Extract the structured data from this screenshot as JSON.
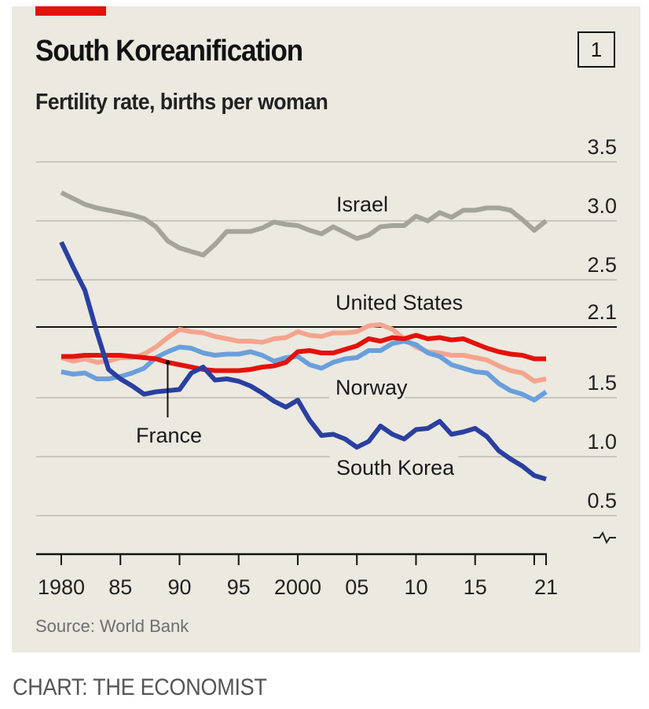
{
  "header": {
    "title": "South Koreanification",
    "chart_number": "1",
    "subtitle": "Fertility rate, births per woman"
  },
  "footer": {
    "source": "Source: World Bank",
    "credit": "CHART: THE ECONOMIST"
  },
  "colors": {
    "accent": "#e3120b",
    "background": "#ebe9e0",
    "Israel": "#a4a49a",
    "United States": "#f5a48e",
    "France": "#e3120b",
    "Norway": "#6a9fdc",
    "South Korea": "#2a3fa0",
    "gridline": "#c8c6bc",
    "replacement_line": "#121212"
  },
  "chart_data": {
    "type": "line",
    "title": "South Koreanification",
    "subtitle": "Fertility rate, births per woman",
    "xlabel": "",
    "ylabel": "",
    "xlim": [
      1980,
      2021
    ],
    "ylim": [
      0.5,
      3.5
    ],
    "y_axis_break": true,
    "grid": true,
    "legend": "inline labels",
    "x_ticks": [
      {
        "value": 1980,
        "label": "1980"
      },
      {
        "value": 1985,
        "label": "85"
      },
      {
        "value": 1990,
        "label": "90"
      },
      {
        "value": 1995,
        "label": "95"
      },
      {
        "value": 2000,
        "label": "2000"
      },
      {
        "value": 2005,
        "label": "05"
      },
      {
        "value": 2010,
        "label": "10"
      },
      {
        "value": 2015,
        "label": "15"
      },
      {
        "value": 2020,
        "label": ""
      },
      {
        "value": 2021,
        "label": "21"
      }
    ],
    "y_ticks": [
      {
        "value": 3.5,
        "label": "3.5"
      },
      {
        "value": 3.0,
        "label": "3.0"
      },
      {
        "value": 2.5,
        "label": "2.5"
      },
      {
        "value": 2.1,
        "label": "2.1",
        "highlight": true
      },
      {
        "value": 1.5,
        "label": "1.5"
      },
      {
        "value": 1.0,
        "label": "1.0"
      },
      {
        "value": 0.5,
        "label": "0.5"
      }
    ],
    "reference_line": {
      "value": 2.1,
      "meaning": "replacement rate"
    },
    "x": [
      1980,
      1981,
      1982,
      1983,
      1984,
      1985,
      1986,
      1987,
      1988,
      1989,
      1990,
      1991,
      1992,
      1993,
      1994,
      1995,
      1996,
      1997,
      1998,
      1999,
      2000,
      2001,
      2002,
      2003,
      2004,
      2005,
      2006,
      2007,
      2008,
      2009,
      2010,
      2011,
      2012,
      2013,
      2014,
      2015,
      2016,
      2017,
      2018,
      2019,
      2020,
      2021
    ],
    "series": [
      {
        "name": "Israel",
        "label": "Israel",
        "values": [
          3.24,
          3.19,
          3.14,
          3.11,
          3.09,
          3.07,
          3.05,
          3.02,
          2.95,
          2.83,
          2.77,
          2.74,
          2.71,
          2.8,
          2.91,
          2.91,
          2.91,
          2.94,
          2.99,
          2.97,
          2.96,
          2.92,
          2.89,
          2.95,
          2.9,
          2.85,
          2.88,
          2.95,
          2.96,
          2.96,
          3.04,
          3.0,
          3.07,
          3.03,
          3.09,
          3.09,
          3.11,
          3.11,
          3.09,
          3.01,
          2.92,
          3.0
        ]
      },
      {
        "name": "United States",
        "label": "United States",
        "values": [
          1.84,
          1.81,
          1.83,
          1.8,
          1.81,
          1.84,
          1.84,
          1.87,
          1.93,
          2.01,
          2.08,
          2.06,
          2.05,
          2.02,
          2.0,
          1.98,
          1.98,
          1.97,
          2.0,
          2.01,
          2.06,
          2.03,
          2.02,
          2.05,
          2.05,
          2.06,
          2.11,
          2.12,
          2.08,
          2.0,
          1.93,
          1.89,
          1.88,
          1.86,
          1.86,
          1.84,
          1.82,
          1.77,
          1.73,
          1.71,
          1.64,
          1.66
        ]
      },
      {
        "name": "France",
        "label": "France",
        "values": [
          1.85,
          1.85,
          1.86,
          1.86,
          1.86,
          1.86,
          1.85,
          1.84,
          1.83,
          1.8,
          1.78,
          1.76,
          1.74,
          1.73,
          1.73,
          1.73,
          1.74,
          1.76,
          1.77,
          1.8,
          1.89,
          1.9,
          1.88,
          1.88,
          1.91,
          1.94,
          2.0,
          1.98,
          2.01,
          2.0,
          2.03,
          2.0,
          2.01,
          1.99,
          2.0,
          1.96,
          1.92,
          1.89,
          1.87,
          1.86,
          1.83,
          1.83
        ]
      },
      {
        "name": "Norway",
        "label": "Norway",
        "values": [
          1.72,
          1.7,
          1.71,
          1.66,
          1.66,
          1.68,
          1.71,
          1.75,
          1.84,
          1.89,
          1.93,
          1.92,
          1.88,
          1.86,
          1.87,
          1.87,
          1.89,
          1.86,
          1.81,
          1.84,
          1.85,
          1.78,
          1.75,
          1.8,
          1.83,
          1.84,
          1.9,
          1.9,
          1.96,
          1.98,
          1.95,
          1.88,
          1.85,
          1.78,
          1.75,
          1.72,
          1.71,
          1.62,
          1.56,
          1.53,
          1.48,
          1.55
        ]
      },
      {
        "name": "South Korea",
        "label": "South Korea",
        "values": [
          2.82,
          2.61,
          2.41,
          2.06,
          1.74,
          1.66,
          1.6,
          1.53,
          1.55,
          1.56,
          1.57,
          1.71,
          1.76,
          1.65,
          1.66,
          1.64,
          1.6,
          1.54,
          1.47,
          1.42,
          1.48,
          1.31,
          1.18,
          1.19,
          1.15,
          1.08,
          1.13,
          1.26,
          1.19,
          1.15,
          1.23,
          1.24,
          1.3,
          1.19,
          1.21,
          1.24,
          1.17,
          1.05,
          0.98,
          0.92,
          0.84,
          0.81
        ]
      }
    ],
    "annotations": [
      {
        "text": "Israel",
        "series": "Israel"
      },
      {
        "text": "United States",
        "series": "United States"
      },
      {
        "text": "Norway",
        "series": "Norway"
      },
      {
        "text": "France",
        "series": "France",
        "pointer_year": 1989
      },
      {
        "text": "South Korea",
        "series": "South Korea"
      }
    ]
  }
}
